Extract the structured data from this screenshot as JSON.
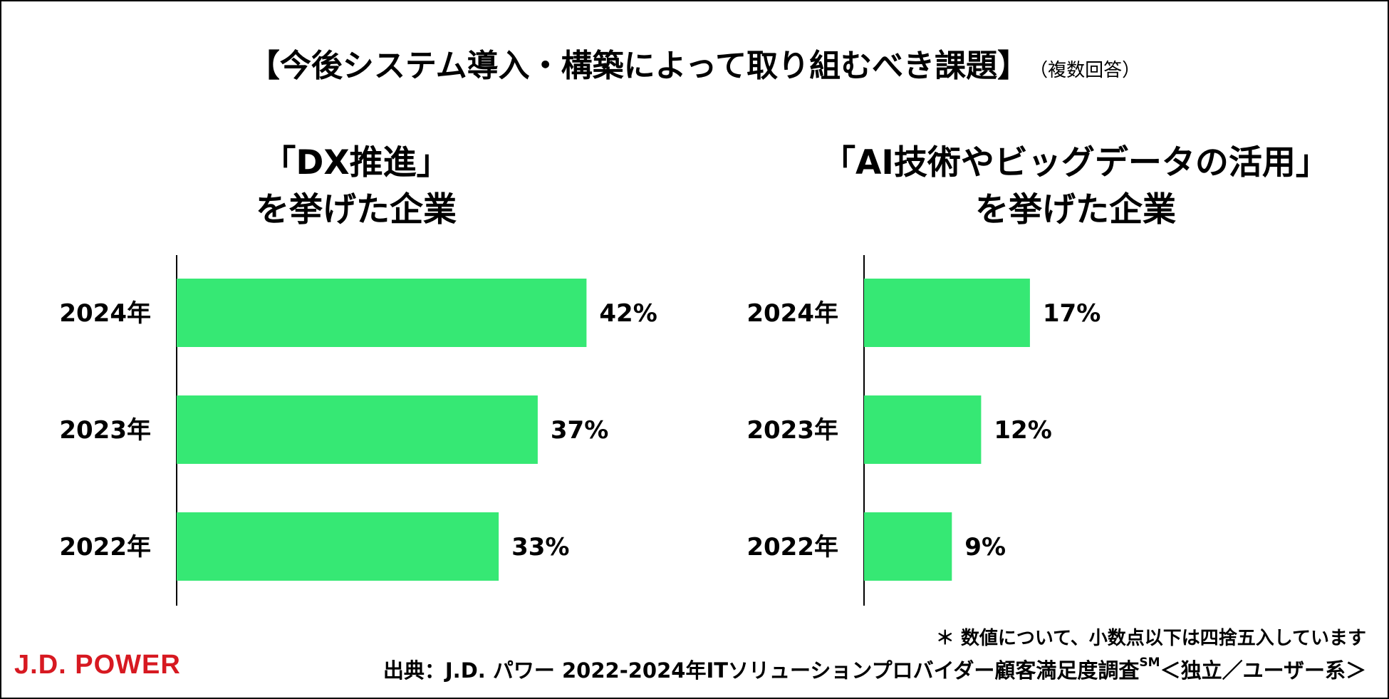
{
  "header": {
    "title": "【今後システム導入・構築によって取り組むべき課題】",
    "subtitle": "（複数回答）"
  },
  "chart_data": [
    {
      "type": "bar",
      "orientation": "horizontal",
      "title_line1": "「DX推進」",
      "title_line2": "を挙げた企業",
      "categories": [
        "2024年",
        "2023年",
        "2022年"
      ],
      "values": [
        42,
        37,
        33
      ],
      "value_labels": [
        "42%",
        "37%",
        "33%"
      ],
      "color": "#36e874",
      "xlim": [
        0,
        45
      ]
    },
    {
      "type": "bar",
      "orientation": "horizontal",
      "title_line1": "「AI技術やビッグデータの活用」",
      "title_line2": "を挙げた企業",
      "categories": [
        "2024年",
        "2023年",
        "2022年"
      ],
      "values": [
        17,
        12,
        9
      ],
      "value_labels": [
        "17%",
        "12%",
        "9%"
      ],
      "color": "#36e874",
      "xlim": [
        0,
        45
      ]
    }
  ],
  "footer": {
    "note": "＊ 数値について、小数点以下は四捨五入しています",
    "logo": "J.D. POWER",
    "logo_color": "#d71921",
    "source_main": "出典：J.D. パワー 2022-2024年ITソリューションプロバイダー顧客満足度調査",
    "source_sup": "SM",
    "source_tail": "＜独立／ユーザー系＞"
  }
}
